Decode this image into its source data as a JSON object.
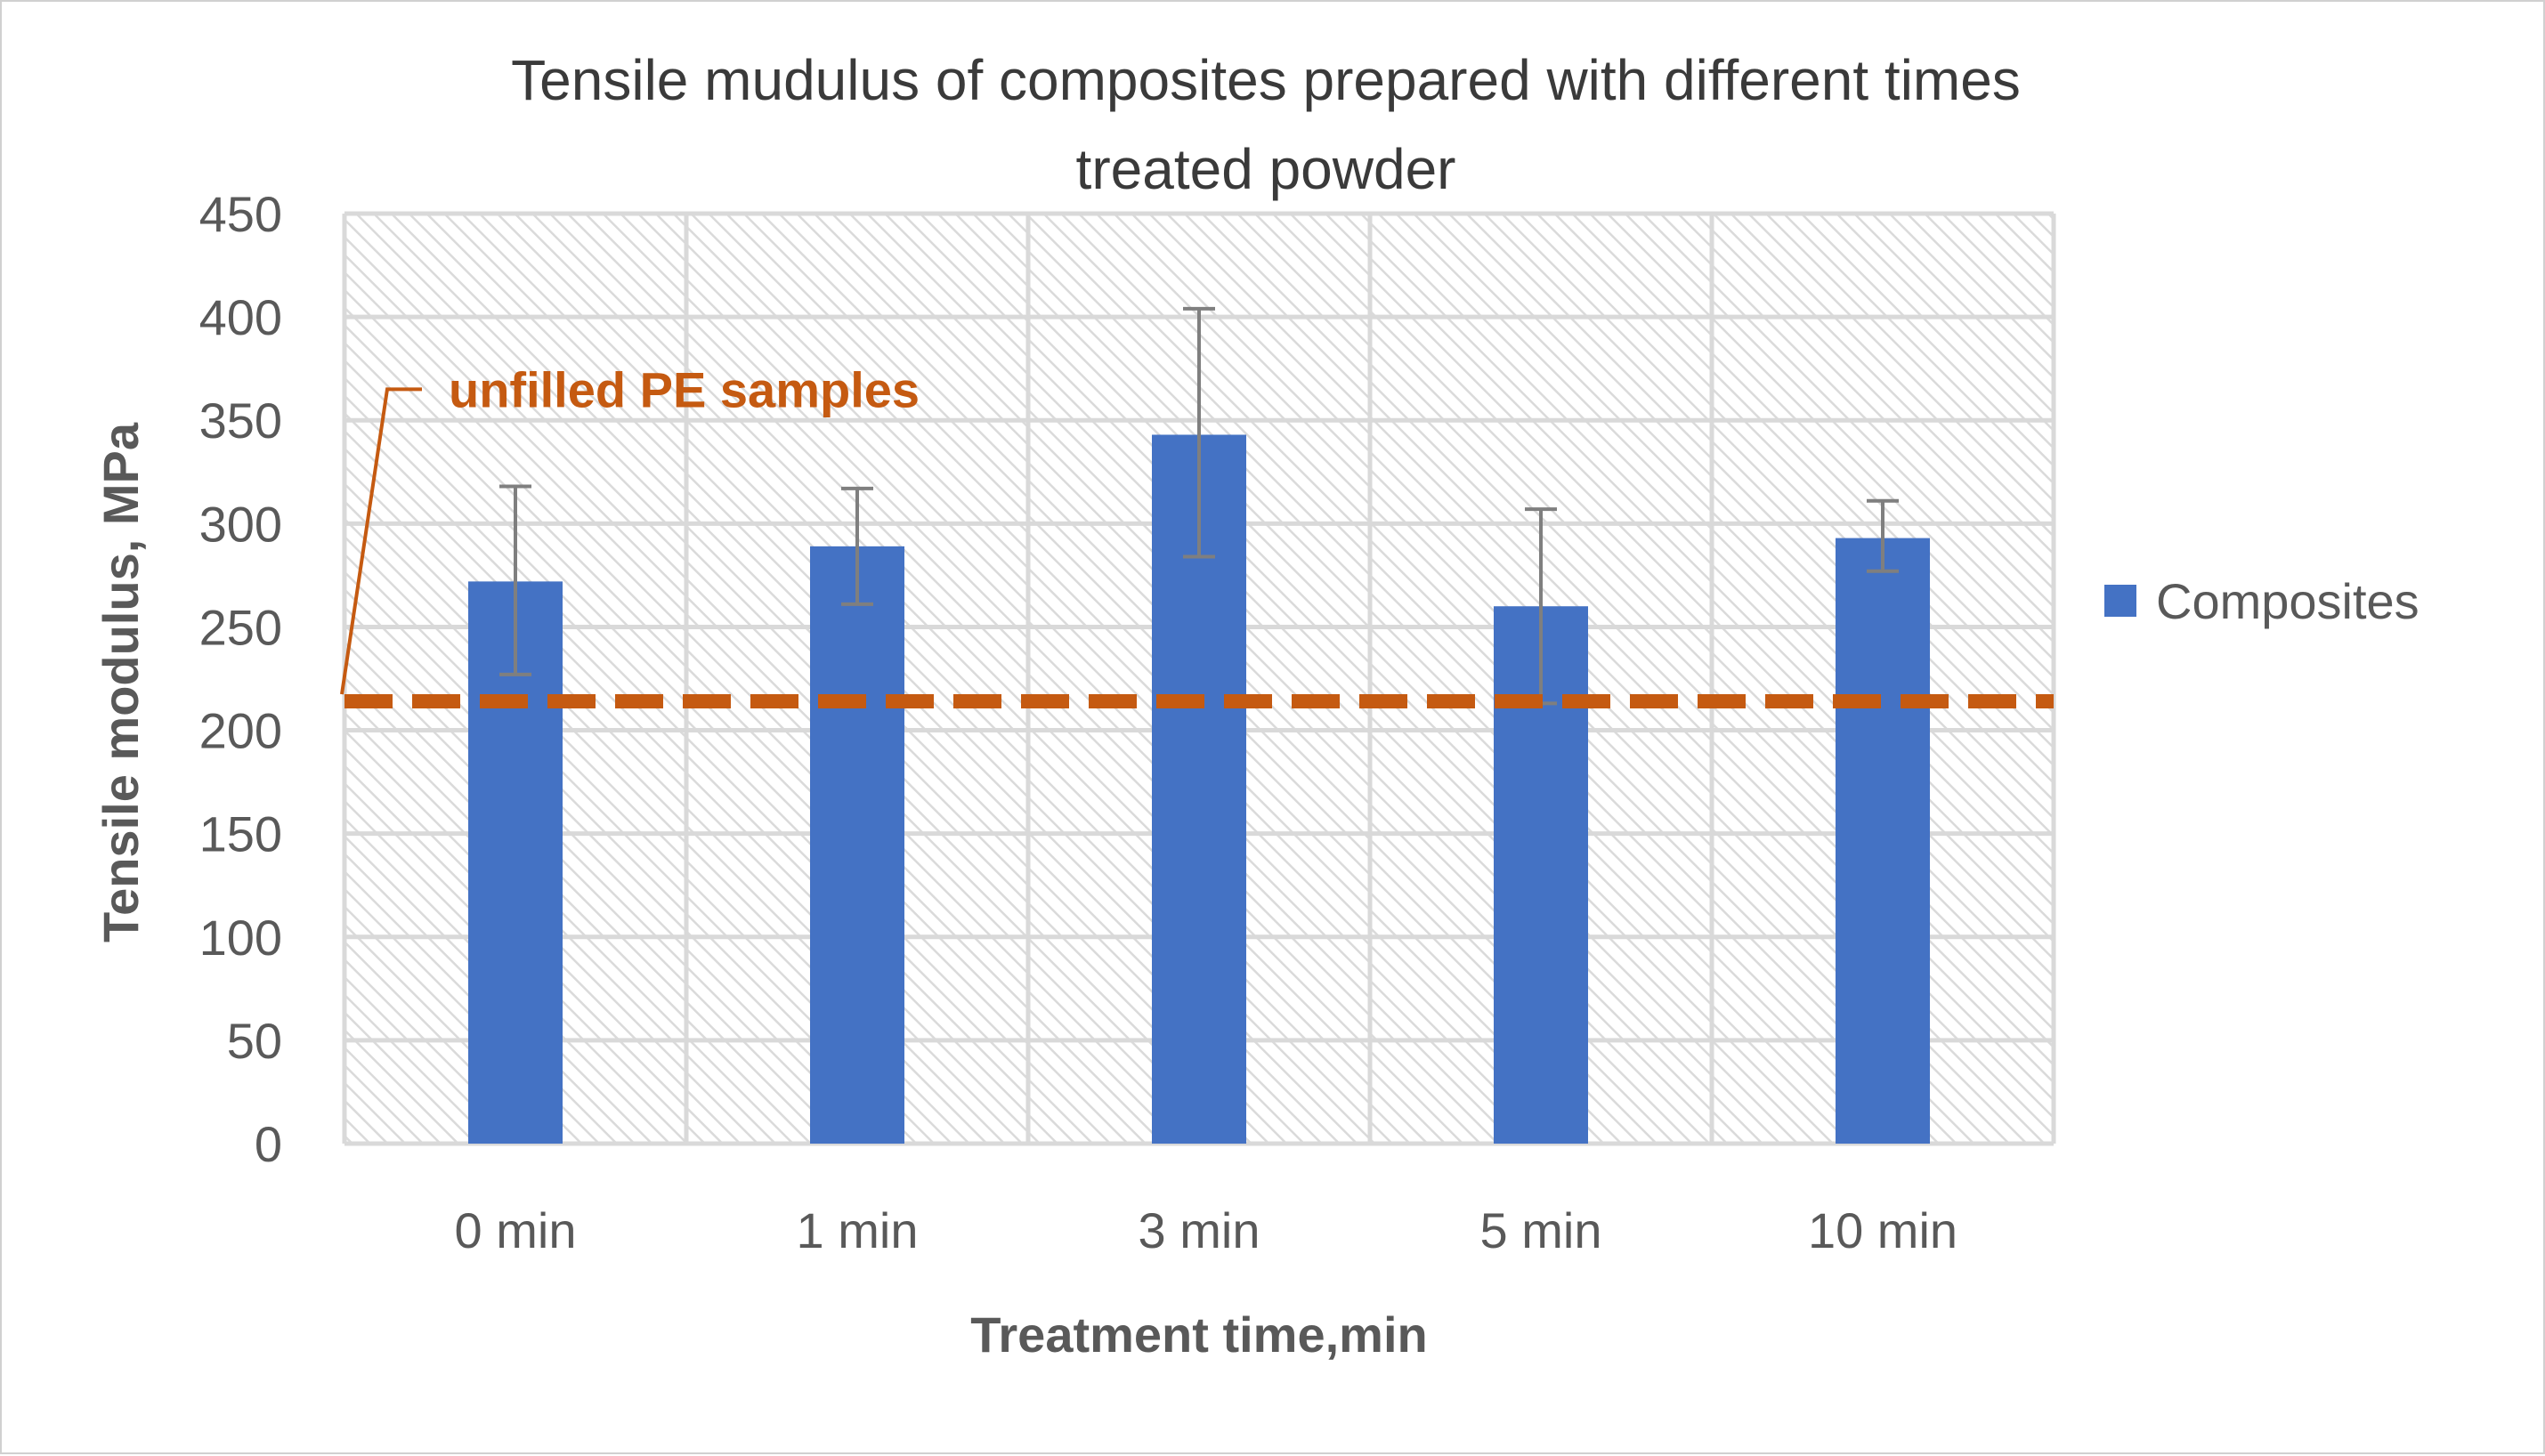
{
  "chart_data": {
    "type": "bar",
    "title_lines": [
      "Tensile mudulus of composites prepared with different times",
      "treated powder"
    ],
    "xlabel": "Treatment time,min",
    "ylabel": "Tensile modulus, MPa",
    "categories": [
      "0 min",
      "1 min",
      "3 min",
      "5 min",
      "10 min"
    ],
    "series": [
      {
        "name": "Composites",
        "values": [
          272,
          289,
          343,
          260,
          293
        ],
        "error_upper": [
          318,
          317,
          404,
          307,
          311
        ],
        "error_lower": [
          227,
          261,
          284,
          213,
          277
        ]
      }
    ],
    "ylim": [
      0,
      450
    ],
    "ytick_step": 50,
    "grid": true,
    "legend": "right",
    "reference_line": {
      "label": "unfilled PE samples",
      "value": 214,
      "style": "dashed"
    },
    "colors": {
      "bar": "#4472C4",
      "error_bar": "#7f7f7f",
      "reference": "#C55A11",
      "grid": "#d9d9d9",
      "text": "#595959"
    }
  }
}
